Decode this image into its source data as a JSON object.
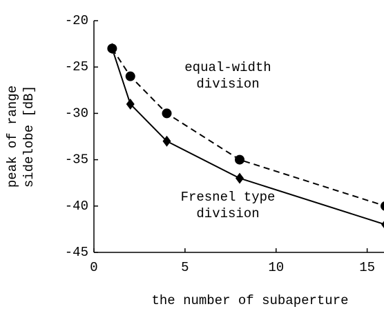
{
  "chart_data": {
    "type": "line",
    "x_label": "the number of subaperture",
    "y_label": [
      "peak of range",
      "sidelobe [dB]"
    ],
    "xlim": [
      0,
      16
    ],
    "xticks": [
      0,
      5,
      10,
      15
    ],
    "ylim": [
      -45,
      -20
    ],
    "yticks": [
      -45,
      -40,
      -35,
      -30,
      -25,
      -20
    ],
    "series": [
      {
        "name": "equal-width division",
        "label_lines": [
          "equal-width",
          "division"
        ],
        "color": "#000",
        "dash": true,
        "marker": "circle",
        "x": [
          1,
          2,
          4,
          8,
          16
        ],
        "values": [
          -23,
          -26,
          -30,
          -35,
          -40
        ]
      },
      {
        "name": "Fresnel type division",
        "label_lines": [
          "Fresnel type",
          "division"
        ],
        "color": "#000",
        "dash": false,
        "marker": "diamond",
        "x": [
          1,
          2,
          4,
          8,
          16
        ],
        "values": [
          -23,
          -29,
          -33,
          -37,
          -42
        ]
      }
    ]
  }
}
